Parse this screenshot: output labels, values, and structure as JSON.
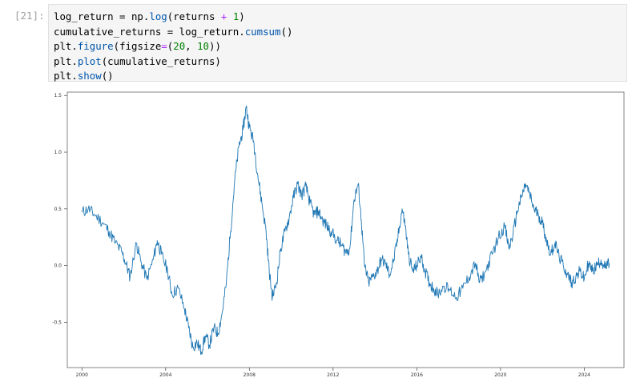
{
  "cell": {
    "prompt": "[21]:",
    "code_lines": [
      [
        {
          "t": "log_return = np.",
          "c": ""
        },
        {
          "t": "log",
          "c": "fn"
        },
        {
          "t": "(returns ",
          "c": ""
        },
        {
          "t": "+",
          "c": "op"
        },
        {
          "t": " ",
          "c": ""
        },
        {
          "t": "1",
          "c": "num"
        },
        {
          "t": ")",
          "c": ""
        }
      ],
      [
        {
          "t": "cumulative_returns = log_return.",
          "c": ""
        },
        {
          "t": "cumsum",
          "c": "fn"
        },
        {
          "t": "()",
          "c": ""
        }
      ],
      [
        {
          "t": "plt.",
          "c": ""
        },
        {
          "t": "figure",
          "c": "fn"
        },
        {
          "t": "(figsize",
          "c": ""
        },
        {
          "t": "=",
          "c": "op"
        },
        {
          "t": "(",
          "c": ""
        },
        {
          "t": "20",
          "c": "num"
        },
        {
          "t": ", ",
          "c": ""
        },
        {
          "t": "10",
          "c": "num"
        },
        {
          "t": "))",
          "c": ""
        }
      ],
      [
        {
          "t": "plt.",
          "c": ""
        },
        {
          "t": "plot",
          "c": "fn"
        },
        {
          "t": "(cumulative_returns)",
          "c": ""
        }
      ],
      [
        {
          "t": "plt.",
          "c": ""
        },
        {
          "t": "show",
          "c": "fn"
        },
        {
          "t": "()",
          "c": ""
        }
      ]
    ]
  },
  "colors": {
    "line": "#1f77b4",
    "code_fn": "#0055aa",
    "code_op": "#aa22ff",
    "code_num": "#008000",
    "prompt": "#9e9e9e",
    "editor_bg": "#f5f5f5"
  },
  "chart_data": {
    "type": "line",
    "title": "",
    "xlabel": "",
    "ylabel": "",
    "xlim": [
      1999.3,
      2025.9
    ],
    "ylim": [
      -0.9,
      1.53
    ],
    "xticks": [
      2000,
      2004,
      2008,
      2012,
      2016,
      2020,
      2024
    ],
    "xtick_labels": [
      "2000",
      "2004",
      "2008",
      "2012",
      "2016",
      "2020",
      "2024"
    ],
    "yticks": [
      -0.5,
      0.0,
      0.5,
      1.0,
      1.5
    ],
    "ytick_labels": [
      "-0.5",
      "0.0",
      "0.5",
      "1.0",
      "1.5"
    ],
    "grid": false,
    "legend": false,
    "series": [
      {
        "name": "",
        "points": [
          [
            2000.0,
            0.47
          ],
          [
            2000.3,
            0.5
          ],
          [
            2000.6,
            0.45
          ],
          [
            2001.0,
            0.38
          ],
          [
            2001.3,
            0.3
          ],
          [
            2001.6,
            0.2
          ],
          [
            2001.9,
            0.12
          ],
          [
            2002.1,
            0.02
          ],
          [
            2002.3,
            -0.1
          ],
          [
            2002.6,
            0.2
          ],
          [
            2002.8,
            0.05
          ],
          [
            2003.1,
            -0.12
          ],
          [
            2003.4,
            0.05
          ],
          [
            2003.6,
            0.22
          ],
          [
            2003.8,
            0.1
          ],
          [
            2004.1,
            -0.05
          ],
          [
            2004.3,
            -0.25
          ],
          [
            2004.6,
            -0.2
          ],
          [
            2004.9,
            -0.38
          ],
          [
            2005.1,
            -0.55
          ],
          [
            2005.3,
            -0.72
          ],
          [
            2005.5,
            -0.68
          ],
          [
            2005.7,
            -0.76
          ],
          [
            2005.9,
            -0.62
          ],
          [
            2006.1,
            -0.7
          ],
          [
            2006.3,
            -0.55
          ],
          [
            2006.5,
            -0.6
          ],
          [
            2006.7,
            -0.42
          ],
          [
            2006.9,
            -0.15
          ],
          [
            2007.1,
            0.3
          ],
          [
            2007.3,
            0.75
          ],
          [
            2007.5,
            1.05
          ],
          [
            2007.7,
            1.2
          ],
          [
            2007.85,
            1.4
          ],
          [
            2008.0,
            1.22
          ],
          [
            2008.2,
            1.1
          ],
          [
            2008.4,
            0.8
          ],
          [
            2008.6,
            0.55
          ],
          [
            2008.8,
            0.3
          ],
          [
            2008.95,
            -0.05
          ],
          [
            2009.1,
            -0.28
          ],
          [
            2009.3,
            -0.15
          ],
          [
            2009.5,
            0.15
          ],
          [
            2009.7,
            0.3
          ],
          [
            2009.9,
            0.42
          ],
          [
            2010.1,
            0.6
          ],
          [
            2010.3,
            0.72
          ],
          [
            2010.5,
            0.62
          ],
          [
            2010.7,
            0.7
          ],
          [
            2010.9,
            0.55
          ],
          [
            2011.1,
            0.45
          ],
          [
            2011.3,
            0.48
          ],
          [
            2011.5,
            0.4
          ],
          [
            2011.7,
            0.35
          ],
          [
            2011.9,
            0.3
          ],
          [
            2012.2,
            0.22
          ],
          [
            2012.4,
            0.18
          ],
          [
            2012.6,
            0.12
          ],
          [
            2012.8,
            0.15
          ],
          [
            2013.0,
            0.58
          ],
          [
            2013.2,
            0.72
          ],
          [
            2013.35,
            0.4
          ],
          [
            2013.5,
            0.0
          ],
          [
            2013.7,
            -0.15
          ],
          [
            2013.9,
            -0.1
          ],
          [
            2014.1,
            -0.05
          ],
          [
            2014.3,
            0.05
          ],
          [
            2014.5,
            0.02
          ],
          [
            2014.7,
            -0.08
          ],
          [
            2014.9,
            0.05
          ],
          [
            2015.1,
            0.25
          ],
          [
            2015.3,
            0.5
          ],
          [
            2015.45,
            0.35
          ],
          [
            2015.6,
            0.1
          ],
          [
            2015.8,
            -0.05
          ],
          [
            2016.0,
            0.0
          ],
          [
            2016.2,
            0.08
          ],
          [
            2016.4,
            -0.05
          ],
          [
            2016.6,
            -0.15
          ],
          [
            2016.8,
            -0.2
          ],
          [
            2017.0,
            -0.25
          ],
          [
            2017.3,
            -0.18
          ],
          [
            2017.6,
            -0.22
          ],
          [
            2017.9,
            -0.28
          ],
          [
            2018.2,
            -0.2
          ],
          [
            2018.5,
            -0.1
          ],
          [
            2018.8,
            0.02
          ],
          [
            2019.0,
            -0.15
          ],
          [
            2019.3,
            -0.05
          ],
          [
            2019.6,
            0.1
          ],
          [
            2019.9,
            0.25
          ],
          [
            2020.2,
            0.35
          ],
          [
            2020.4,
            0.15
          ],
          [
            2020.6,
            0.28
          ],
          [
            2020.8,
            0.48
          ],
          [
            2021.0,
            0.6
          ],
          [
            2021.2,
            0.72
          ],
          [
            2021.4,
            0.62
          ],
          [
            2021.6,
            0.5
          ],
          [
            2021.8,
            0.45
          ],
          [
            2022.0,
            0.38
          ],
          [
            2022.2,
            0.22
          ],
          [
            2022.4,
            0.1
          ],
          [
            2022.6,
            0.2
          ],
          [
            2022.8,
            0.08
          ],
          [
            2023.0,
            0.0
          ],
          [
            2023.2,
            -0.08
          ],
          [
            2023.4,
            -0.15
          ],
          [
            2023.6,
            -0.1
          ],
          [
            2023.8,
            -0.05
          ],
          [
            2024.0,
            -0.12
          ],
          [
            2024.2,
            0.02
          ],
          [
            2024.4,
            -0.05
          ],
          [
            2024.6,
            0.0
          ],
          [
            2024.8,
            0.05
          ],
          [
            2025.0,
            -0.02
          ],
          [
            2025.2,
            0.02
          ]
        ]
      }
    ]
  }
}
